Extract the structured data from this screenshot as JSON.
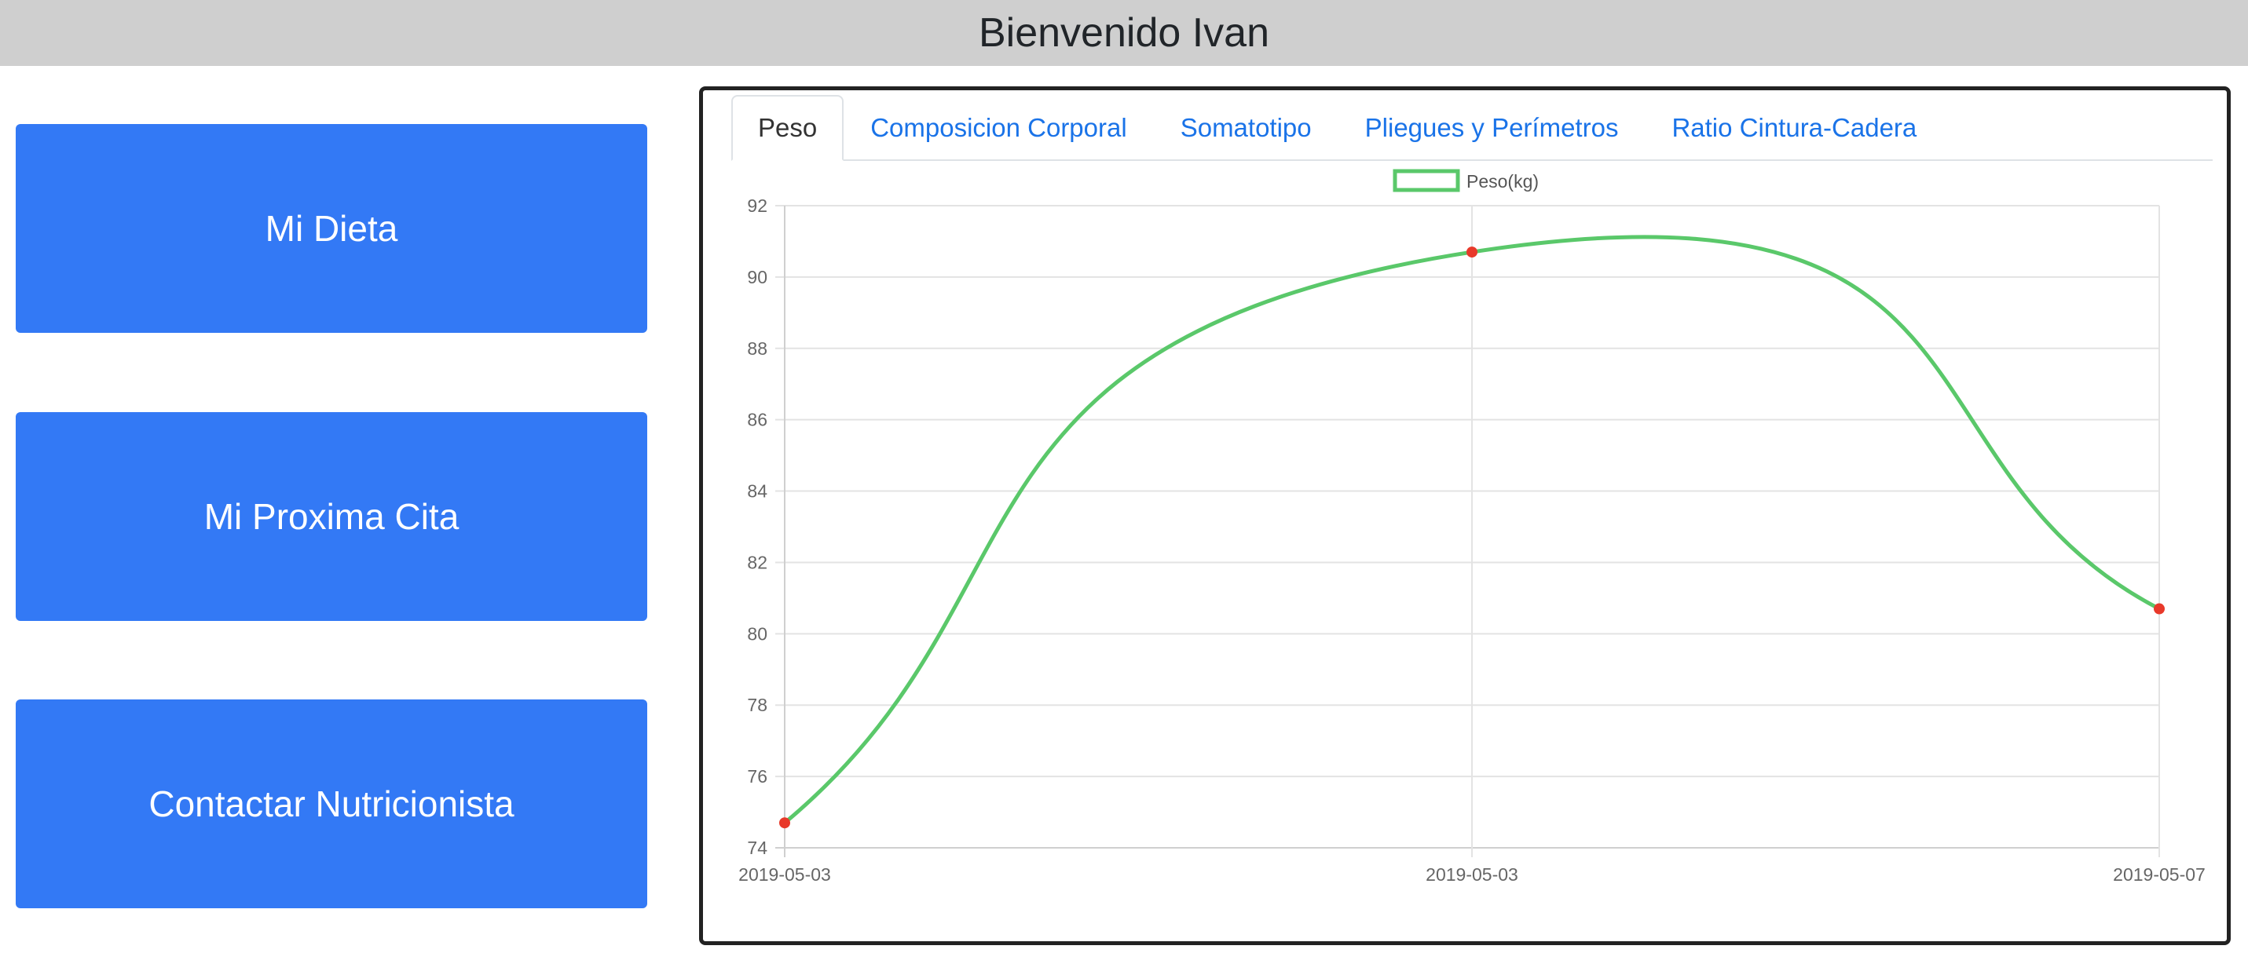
{
  "header": {
    "title": "Bienvenido Ivan"
  },
  "sidebar": {
    "buttons": [
      {
        "label": "Mi Dieta"
      },
      {
        "label": "Mi Proxima Cita"
      },
      {
        "label": "Contactar Nutricionista"
      }
    ]
  },
  "panel": {
    "tabs": [
      {
        "label": "Peso",
        "active": true
      },
      {
        "label": "Composicion Corporal",
        "active": false
      },
      {
        "label": "Somatotipo",
        "active": false
      },
      {
        "label": "Pliegues y Perímetros",
        "active": false
      },
      {
        "label": "Ratio Cintura-Cadera",
        "active": false
      }
    ]
  },
  "colors": {
    "header_bg": "#cfcfcf",
    "button_bg": "#3379f5",
    "link": "#1a73e8",
    "line": "#5ac86a",
    "point": "#e8392a",
    "grid": "#e3e3e3"
  },
  "chart_data": {
    "type": "line",
    "categories": [
      "2019-05-03",
      "2019-05-03",
      "2019-05-07"
    ],
    "series": [
      {
        "name": "Peso(kg)",
        "values": [
          74.7,
          90.7,
          80.7
        ]
      }
    ],
    "ylim": [
      74,
      92
    ],
    "yticks": [
      74,
      76,
      78,
      80,
      82,
      84,
      86,
      88,
      90,
      92
    ],
    "grid": true,
    "legend": "top-center",
    "curve": "smooth"
  }
}
